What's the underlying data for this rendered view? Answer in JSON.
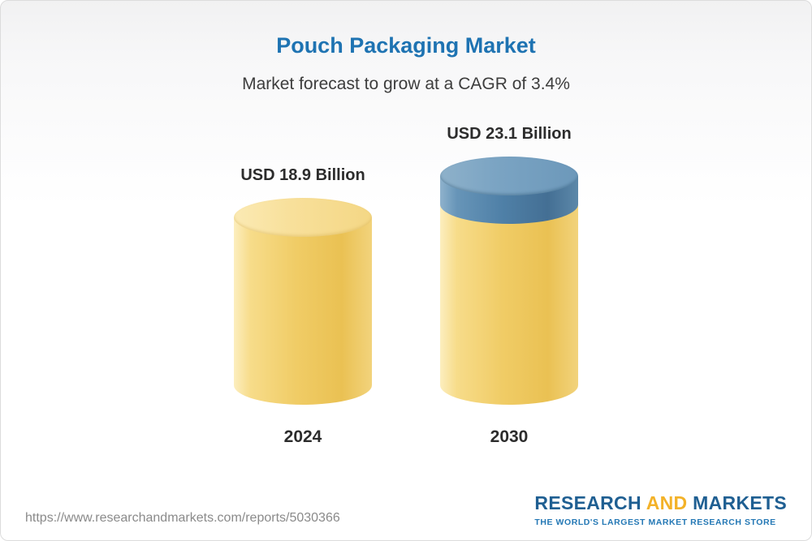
{
  "card": {
    "title": "Pouch Packaging Market",
    "subtitle": "Market forecast to grow at a CAGR of 3.4%"
  },
  "chart_data": {
    "type": "bar",
    "variant": "cylinder-3d",
    "title": "Pouch Packaging Market",
    "subtitle": "Market forecast to grow at a CAGR of 3.4%",
    "categories": [
      "2024",
      "2030"
    ],
    "values": [
      18.9,
      23.1
    ],
    "value_labels": [
      "USD 18.9 Billion",
      "USD 23.1 Billion"
    ],
    "unit": "USD Billion",
    "cagr_percent": 3.4,
    "ylim": [
      0,
      23.1
    ],
    "grid": false,
    "legend": false,
    "colors": {
      "bar_base": "#F0CC66",
      "bar_growth_cap": "#4F80A7",
      "label_text": "#2C2C2C",
      "title_text": "#1E73B2"
    },
    "notes_visual": "2030 bar is yellow with a blue top segment representing growth above the 2024 value"
  },
  "footer": {
    "url": "https://www.researchandmarkets.com/reports/5030366",
    "logo": {
      "word1": "RESEARCH",
      "word2": "AND",
      "word3": "MARKETS",
      "tagline": "THE WORLD'S LARGEST MARKET RESEARCH STORE"
    }
  }
}
